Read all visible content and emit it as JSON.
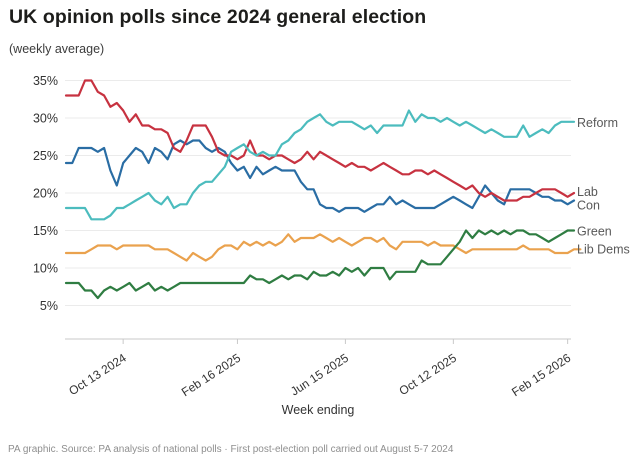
{
  "title": "UK opinion polls since 2024 general election",
  "subtitle": "(weekly average)",
  "source": "PA graphic. Source: PA analysis of national polls · First post-election poll carried out August 5-7 2024",
  "chart_data": {
    "type": "line",
    "title": "UK opinion polls since 2024 general election",
    "subtitle": "(weekly average)",
    "xlabel": "Week ending",
    "ylabel": "",
    "ylim": [
      0,
      37
    ],
    "grid": "horizontal",
    "legend_position": "line-end-labels-right",
    "y_axis": {
      "tick_values": [
        5,
        10,
        15,
        20,
        25,
        30,
        35
      ],
      "tick_labels": [
        "5%",
        "10%",
        "15%",
        "20%",
        "25%",
        "30%",
        "35%"
      ],
      "unit": "%"
    },
    "x_axis": {
      "label": "Week ending",
      "tick_labels": [
        "Oct 13 2024",
        "Feb 16 2025",
        "Jun 15 2025",
        "Oct 12 2025",
        "Feb 15 2026"
      ],
      "tick_week_indices": [
        9,
        27,
        44,
        61,
        79
      ],
      "weeks_total": 81
    },
    "series": [
      {
        "name": "Lib Dems",
        "color": "#eaa24e",
        "values": [
          12,
          12,
          12,
          12,
          12.5,
          13,
          13,
          13,
          12.5,
          13,
          13,
          13,
          13,
          13,
          12.5,
          12.5,
          12.5,
          12,
          11.5,
          11,
          12,
          11.5,
          11,
          11.5,
          12.5,
          13,
          13,
          12.5,
          13.5,
          13,
          13.5,
          13,
          13.5,
          13,
          13.5,
          14.5,
          13.5,
          14,
          14,
          14,
          14.5,
          14,
          13.5,
          14,
          13.5,
          13,
          13.5,
          14,
          14,
          13.5,
          14,
          13,
          12.5,
          13.5,
          13.5,
          13.5,
          13.5,
          13,
          13.5,
          13,
          13,
          13,
          12.5,
          12,
          12.5,
          12.5,
          12.5,
          12.5,
          12.5,
          12.5,
          12.5,
          12.5,
          13,
          12.5,
          12.5,
          12.5,
          12.5,
          12,
          12,
          12,
          12.5,
          12.5
        ]
      },
      {
        "name": "Green",
        "color": "#2f7d42",
        "values": [
          8,
          8,
          8,
          7,
          7,
          6,
          7,
          7.5,
          7,
          7.5,
          8,
          7,
          7.5,
          8,
          7,
          7.5,
          7,
          7.5,
          8,
          8,
          8,
          8,
          8,
          8,
          8,
          8,
          8,
          8,
          8,
          9,
          8.5,
          8.5,
          8,
          8.5,
          9,
          8.5,
          9,
          9,
          8.5,
          9.5,
          9,
          9,
          9.5,
          9,
          10,
          9.5,
          10,
          9,
          10,
          10,
          10,
          8.5,
          9.5,
          9.5,
          9.5,
          9.5,
          11,
          10.5,
          10.5,
          10.5,
          11.5,
          12.5,
          13.5,
          15,
          14,
          15,
          14.5,
          15,
          14.5,
          15,
          14.5,
          15,
          15,
          14.5,
          14.5,
          14,
          13.5,
          14,
          14.5,
          15,
          15
        ]
      },
      {
        "name": "Con",
        "color": "#2a6da4",
        "values": [
          24,
          24,
          26,
          26,
          26,
          25.5,
          26,
          23,
          21,
          24,
          25,
          26,
          25.5,
          24,
          26,
          25.5,
          24.5,
          26.5,
          27,
          26.5,
          27,
          27,
          26,
          25.5,
          26,
          25.5,
          24,
          23,
          23.5,
          22,
          23.5,
          22.5,
          23,
          23.5,
          23,
          23,
          23,
          21.5,
          20.5,
          20.5,
          18.5,
          18,
          18,
          17.5,
          18,
          18,
          18,
          17.5,
          18,
          18.5,
          18.5,
          19.5,
          18.5,
          19,
          18.5,
          18,
          18,
          18,
          18,
          18.5,
          19,
          19.5,
          19,
          18.5,
          18,
          19.5,
          21,
          20,
          19,
          18.5,
          20.5,
          20.5,
          20.5,
          20.5,
          20,
          19.5,
          19.5,
          19,
          19,
          18.5,
          19
        ]
      },
      {
        "name": "Lab",
        "color": "#c73240",
        "values": [
          33,
          33,
          33,
          35,
          35,
          33.5,
          33,
          31.5,
          32,
          31,
          29.5,
          30.5,
          29,
          29,
          28.5,
          28.5,
          28,
          26,
          25.5,
          27,
          29,
          29,
          29,
          27.5,
          25.5,
          25,
          25,
          24.5,
          25,
          27,
          25,
          25,
          24.5,
          25,
          25,
          24.5,
          24,
          24.5,
          25.5,
          24.5,
          25.5,
          25,
          24.5,
          24,
          23.5,
          24,
          23.5,
          23.5,
          23,
          23.5,
          24,
          23.5,
          23,
          22.5,
          22.5,
          23,
          23,
          22.5,
          23,
          22.5,
          22,
          21.5,
          21,
          20.5,
          21,
          20,
          19.5,
          20,
          19.5,
          19,
          19,
          19,
          19.5,
          19.5,
          20,
          20.5,
          20.5,
          20.5,
          20,
          19.5,
          20
        ]
      },
      {
        "name": "Reform",
        "color": "#4cbcbe",
        "values": [
          18,
          18,
          18,
          18,
          16.5,
          16.5,
          16.5,
          17,
          18,
          18,
          18.5,
          19,
          19.5,
          20,
          19,
          18.5,
          19.5,
          18,
          18.5,
          18.5,
          20,
          21,
          21.5,
          21.5,
          22.5,
          23.5,
          25.5,
          26,
          26.5,
          25.5,
          25,
          25.5,
          25,
          25,
          26.5,
          27,
          28,
          28.5,
          29.5,
          30,
          30.5,
          29.5,
          29,
          29.5,
          29.5,
          29.5,
          29,
          28.5,
          29,
          28,
          29,
          29,
          29,
          29,
          31,
          29.5,
          30.5,
          30,
          30,
          29.5,
          30,
          29.5,
          29,
          29.5,
          29,
          28.5,
          28,
          28.5,
          28,
          27.5,
          27.5,
          27.5,
          29,
          27.5,
          28,
          28.5,
          28,
          29,
          29.5,
          29.5,
          29.5
        ]
      }
    ]
  }
}
